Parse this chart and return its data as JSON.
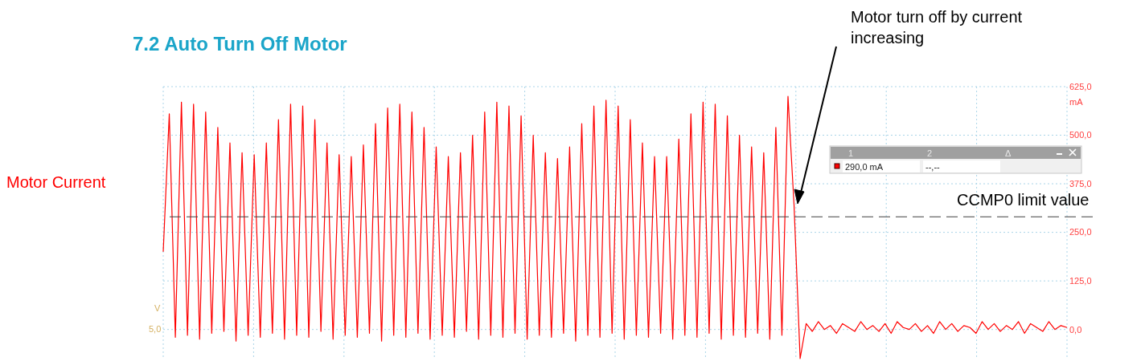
{
  "chart_data": {
    "type": "line",
    "title": "7.2 Auto Turn Off Motor",
    "ylabel": "Motor Current",
    "annotations": [
      "Motor turn off by current increasing",
      "mA",
      "V",
      "5,0",
      "1",
      "2",
      "Δ",
      "290,0 mA",
      "--,--"
    ],
    "categories": [
      null,
      null,
      null,
      null,
      null,
      null,
      null,
      null,
      null,
      null,
      null,
      null,
      null,
      null,
      null,
      null,
      null,
      null,
      null,
      null,
      null,
      null,
      null,
      null,
      null,
      null,
      null,
      null,
      null,
      null,
      null,
      null,
      null,
      null,
      null,
      null,
      null,
      null,
      null,
      null,
      null,
      null,
      null,
      null,
      null,
      null,
      null,
      null,
      null,
      null,
      null,
      null,
      null,
      null,
      null,
      null,
      null,
      null,
      null,
      null,
      null,
      null,
      null,
      null,
      null,
      null,
      null,
      null,
      null,
      null,
      null,
      null,
      null,
      null,
      null,
      null,
      null,
      null,
      null,
      null,
      null,
      null,
      null,
      null,
      null,
      null,
      null,
      null,
      null,
      null,
      null,
      null,
      null,
      null,
      null,
      null,
      null,
      null,
      null,
      null,
      null,
      null,
      null,
      null,
      null,
      null,
      null,
      null,
      null,
      null,
      null,
      null,
      null,
      null,
      null,
      null,
      null,
      null,
      null,
      null,
      null,
      null,
      null,
      null,
      null,
      null,
      null,
      null,
      null,
      null,
      null,
      null,
      null,
      null,
      null,
      null,
      null,
      null,
      null,
      null,
      null,
      null,
      null,
      null,
      null,
      null,
      null,
      null,
      null,
      null
    ],
    "series": [
      {
        "color": "#ff0000",
        "values": [
          200,
          555,
          -20,
          585,
          -15,
          580,
          -25,
          560,
          -10,
          520,
          -5,
          480,
          -30,
          455,
          -15,
          450,
          -20,
          480,
          -10,
          540,
          -25,
          580,
          -15,
          575,
          -20,
          540,
          -5,
          480,
          -25,
          450,
          -15,
          445,
          -20,
          475,
          -10,
          530,
          -30,
          570,
          -15,
          580,
          -20,
          560,
          -10,
          520,
          -25,
          470,
          -15,
          445,
          -20,
          455,
          -5,
          500,
          -25,
          560,
          -15,
          585,
          -20,
          575,
          -10,
          550,
          -25,
          500,
          -15,
          455,
          -20,
          440,
          -10,
          470,
          -30,
          530,
          -15,
          575,
          -20,
          590,
          -10,
          575,
          -25,
          540,
          -15,
          480,
          -20,
          445,
          -10,
          445,
          -25,
          490,
          -15,
          555,
          -20,
          585,
          -10,
          580,
          -25,
          550,
          -15,
          500,
          -20,
          470,
          -10,
          455,
          -25,
          520,
          -15,
          600,
          320,
          -75,
          15,
          -5,
          20,
          0,
          10,
          -10,
          15,
          5,
          -5,
          20,
          0,
          10,
          -5,
          15,
          -10,
          20,
          5,
          0,
          15,
          -5,
          10,
          -10,
          20,
          0,
          15,
          -5,
          10,
          5,
          -10,
          20,
          0,
          15,
          -5,
          10,
          0,
          20,
          -10,
          15,
          5,
          -5,
          20,
          0,
          10,
          5
        ]
      }
    ],
    "ylim": [
      -75,
      625
    ],
    "yticks": [
      {
        "value": 0,
        "label": "0,0"
      },
      {
        "value": 125,
        "label": "125,0"
      },
      {
        "value": 250,
        "label": "250,0"
      },
      {
        "value": 375,
        "label": "375,0"
      },
      {
        "value": 500,
        "label": "500,0"
      },
      {
        "value": 625,
        "label": "625,0"
      }
    ],
    "grid": true,
    "marker": "none",
    "line_style": "solid",
    "ref_lines": [
      {
        "axis": "y",
        "value": 290,
        "label": "CCMP0 limit value",
        "color": "#404040",
        "line_style": "dashed"
      }
    ]
  }
}
